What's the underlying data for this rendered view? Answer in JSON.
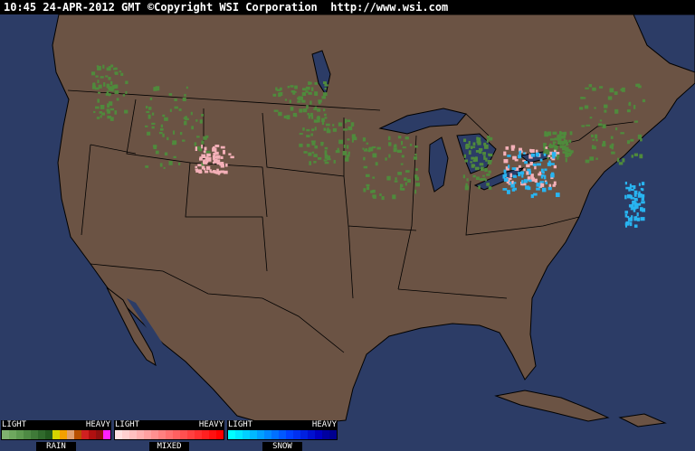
{
  "header": {
    "text": "10:45 24-APR-2012 GMT ©Copyright WSI Corporation  http://www.wsi.com"
  },
  "colors": {
    "ocean": "#2c3c66",
    "land": "#6b5344",
    "border": "#000000",
    "rain": "#4f8a3c",
    "mixed": "#f4b0b8",
    "snow": "#28b4f0"
  },
  "legend": [
    {
      "light": "LIGHT",
      "heavy": "HEAVY",
      "name": "RAIN",
      "colors": [
        "#7fb26f",
        "#6ea85e",
        "#5e9a50",
        "#4e8a44",
        "#3f7a38",
        "#306a2c",
        "#235a20",
        "#d4d400",
        "#f4a000",
        "#e0a070",
        "#b85000",
        "#d02020",
        "#b01010",
        "#901010",
        "#ff20ff"
      ]
    },
    {
      "light": "LIGHT",
      "heavy": "HEAVY",
      "name": "MIXED",
      "colors": [
        "#ffe0e0",
        "#ffd0d0",
        "#ffc0c0",
        "#ffb0b0",
        "#ffa0a0",
        "#ff9090",
        "#ff8080",
        "#ff7070",
        "#ff6060",
        "#ff5050",
        "#ff4040",
        "#ff3030",
        "#ff2020",
        "#ff1010",
        "#ff0000"
      ]
    },
    {
      "light": "LIGHT",
      "heavy": "HEAVY",
      "name": "SNOW",
      "colors": [
        "#00ffff",
        "#00e8ff",
        "#00d0ff",
        "#00b8ff",
        "#00a0ff",
        "#0088ff",
        "#0070ff",
        "#0058ff",
        "#0040ff",
        "#0030f0",
        "#0020e0",
        "#0010d0",
        "#0000c0",
        "#0000a0",
        "#000090"
      ]
    }
  ]
}
